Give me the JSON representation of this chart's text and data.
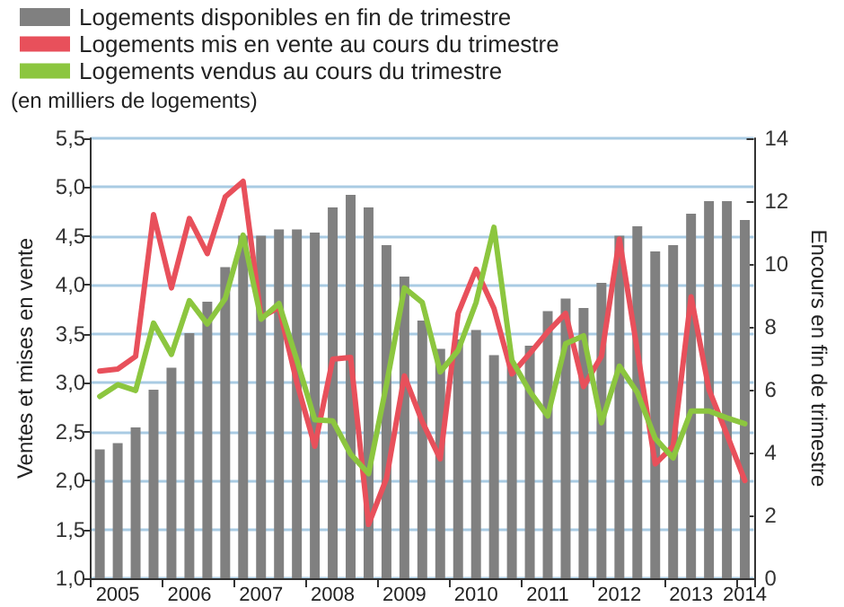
{
  "chart_data": {
    "type": "bar",
    "ylabel": "Ventes et mises en vente",
    "y2label": "Encours en fin de trimestre",
    "annotations": [
      "(en milliers de logements)"
    ],
    "categories": [
      null,
      "2005",
      null,
      null,
      null,
      "2006",
      null,
      null,
      null,
      "2007",
      null,
      null,
      null,
      "2008",
      null,
      null,
      null,
      "2009",
      null,
      null,
      null,
      "2010",
      null,
      null,
      null,
      "2011",
      null,
      null,
      null,
      "2012",
      null,
      null,
      null,
      "2013",
      null,
      null,
      "2014"
    ],
    "series": [
      {
        "name": "Logements disponibles en fin de trimestre",
        "axis": "y2",
        "color": "#808080",
        "values": [
          4.1,
          4.3,
          4.8,
          6.0,
          6.7,
          7.8,
          8.8,
          9.9,
          10.9,
          10.9,
          11.1,
          11.1,
          11.0,
          11.8,
          12.2,
          11.8,
          10.6,
          9.6,
          8.2,
          7.3,
          7.6,
          7.9,
          7.1,
          6.8,
          7.4,
          8.5,
          8.9,
          8.6,
          9.4,
          10.9,
          11.2,
          10.4,
          10.6,
          11.6,
          12.0,
          12.0,
          11.4
        ]
      },
      {
        "name": "Logements mis en vente au cours du trimestre",
        "type": "line",
        "color": "#e8505b",
        "values": [
          3.12,
          3.14,
          3.27,
          4.72,
          3.97,
          4.68,
          4.32,
          4.9,
          5.06,
          3.67,
          3.77,
          3.0,
          2.35,
          3.24,
          3.26,
          1.55,
          2.02,
          3.07,
          2.6,
          2.22,
          3.71,
          4.16,
          3.76,
          3.09,
          3.3,
          3.52,
          3.71,
          2.96,
          3.27,
          4.47,
          3.33,
          2.17,
          2.35,
          3.88,
          2.93,
          2.47,
          2.0
        ]
      },
      {
        "name": "Logements vendus au cours du trimestre",
        "type": "line",
        "color": "#8cc63f",
        "values": [
          2.86,
          2.98,
          2.92,
          3.61,
          3.29,
          3.84,
          3.6,
          3.86,
          4.51,
          3.65,
          3.81,
          3.23,
          2.62,
          2.61,
          2.27,
          2.07,
          2.98,
          3.97,
          3.82,
          3.11,
          3.33,
          3.82,
          4.59,
          3.23,
          2.91,
          2.66,
          3.4,
          3.48,
          2.59,
          3.17,
          2.9,
          2.43,
          2.23,
          2.71,
          2.71,
          2.64,
          2.58
        ]
      }
    ],
    "ylim": [
      1,
      5.5
    ],
    "yticks": [
      {
        "value": 1,
        "label": "1,0"
      },
      {
        "value": 1.5,
        "label": "1,5"
      },
      {
        "value": 2,
        "label": "2,0"
      },
      {
        "value": 2.5,
        "label": "2,5"
      },
      {
        "value": 3,
        "label": "3,0"
      },
      {
        "value": 3.5,
        "label": "3,5"
      },
      {
        "value": 4,
        "label": "4,0"
      },
      {
        "value": 4.5,
        "label": "4,5"
      },
      {
        "value": 5,
        "label": "5,0"
      },
      {
        "value": 5.5,
        "label": "5,5"
      }
    ],
    "y2lim": [
      0,
      14
    ],
    "y2ticks": [
      0,
      2,
      4,
      6,
      8,
      10,
      12,
      14
    ],
    "grid": "y",
    "legend": "top left",
    "marker": "none",
    "line_style": "solid"
  }
}
